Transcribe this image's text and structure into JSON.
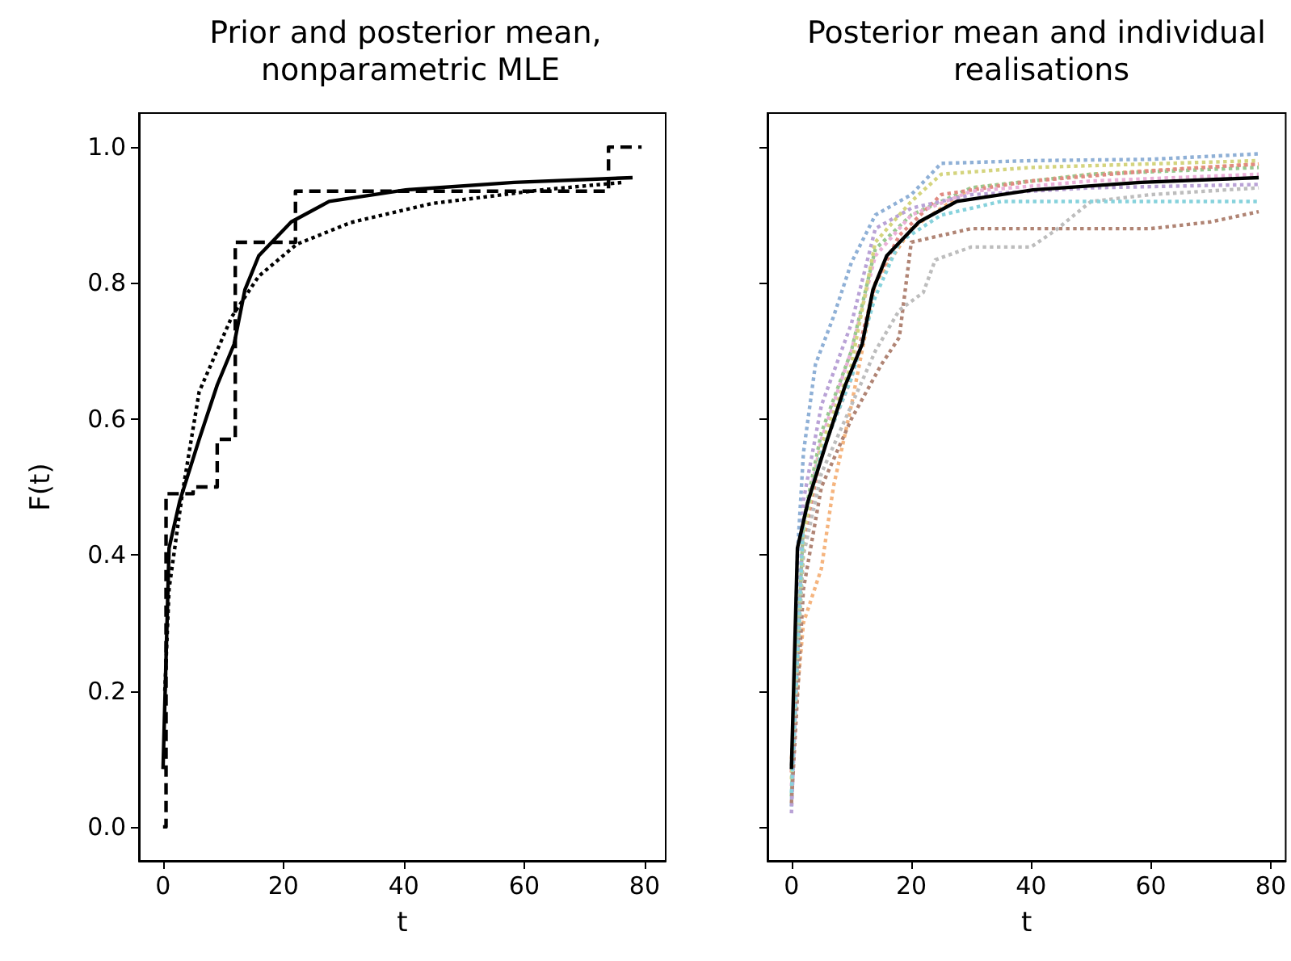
{
  "chart_data": [
    {
      "type": "line",
      "title": "Prior and posterior mean, nonparametric MLE",
      "xlabel": "t",
      "ylabel": "F(t)",
      "xlim": [
        -4,
        83.5
      ],
      "ylim": [
        -0.05,
        1.05
      ],
      "xticks": [
        0,
        20,
        40,
        60,
        80
      ],
      "yticks": [
        {
          "value": 0,
          "label": "0.0"
        },
        {
          "value": 0.2,
          "label": "0.2"
        },
        {
          "value": 0.4,
          "label": "0.4"
        },
        {
          "value": 0.6,
          "label": "0.6"
        },
        {
          "value": 0.8,
          "label": "0.8"
        },
        {
          "value": 1,
          "label": "1.0"
        }
      ],
      "grid": false,
      "marker": "none",
      "series": [
        {
          "color": "#000000",
          "line_style": "solid",
          "x": [
            0,
            1,
            2.8,
            6,
            9,
            11.8,
            13.6,
            15.9,
            21.3,
            27.6,
            40.3,
            58.3,
            78
          ],
          "values": [
            0.085,
            0.41,
            0.48,
            0.57,
            0.65,
            0.71,
            0.79,
            0.84,
            0.89,
            0.92,
            0.937,
            0.948,
            0.955
          ]
        },
        {
          "color": "#000000",
          "line_style": "dotted",
          "x": [
            0.3,
            1,
            3.2,
            6,
            11.4,
            15.9,
            22.2,
            31.2,
            44.7,
            62.9,
            76.4
          ],
          "values": [
            0.2,
            0.35,
            0.49,
            0.64,
            0.75,
            0.81,
            0.857,
            0.889,
            0.917,
            0.937,
            0.948
          ]
        },
        {
          "type": "step",
          "color": "#000000",
          "line_style": "dashed",
          "x": [
            0,
            0.5,
            5,
            9,
            12,
            22,
            74,
            79.5
          ],
          "values": [
            0,
            0.49,
            0.5,
            0.57,
            0.86,
            0.935,
            1.0,
            1.0
          ]
        }
      ]
    },
    {
      "type": "line",
      "title": "Posterior mean and individual realisations",
      "xlabel": "t",
      "xlim": [
        -4,
        82.5
      ],
      "ylim": [
        -0.05,
        1.05
      ],
      "xticks": [
        0,
        20,
        40,
        60,
        80
      ],
      "yticks": [
        0,
        0.2,
        0.4,
        0.6,
        0.8,
        1
      ],
      "tick_labels": "x",
      "grid": false,
      "marker": "none",
      "series": [
        {
          "color": "#8fb0d6",
          "line_style": "dotted",
          "x": [
            0,
            1,
            2,
            4,
            7,
            10,
            14,
            20,
            25,
            40,
            60,
            78
          ],
          "values": [
            0.03,
            0.4,
            0.55,
            0.68,
            0.75,
            0.83,
            0.9,
            0.93,
            0.976,
            0.98,
            0.982,
            0.99
          ]
        },
        {
          "color": "#f5b47e",
          "line_style": "dotted",
          "x": [
            0,
            2,
            5,
            7,
            10,
            14,
            20,
            30,
            50,
            78
          ],
          "values": [
            0.1,
            0.3,
            0.38,
            0.5,
            0.62,
            0.8,
            0.88,
            0.94,
            0.96,
            0.975
          ]
        },
        {
          "color": "#98c890",
          "line_style": "dotted",
          "x": [
            0,
            2,
            5,
            10,
            14,
            20,
            30,
            50,
            78
          ],
          "values": [
            0.045,
            0.45,
            0.58,
            0.7,
            0.85,
            0.9,
            0.94,
            0.96,
            0.97
          ]
        },
        {
          "color": "#e08a82",
          "line_style": "dotted",
          "x": [
            0,
            2,
            5,
            10,
            14,
            18,
            25,
            40,
            60,
            78
          ],
          "values": [
            0.08,
            0.42,
            0.55,
            0.66,
            0.8,
            0.87,
            0.93,
            0.95,
            0.965,
            0.975
          ]
        },
        {
          "color": "#b9a2d6",
          "line_style": "dotted",
          "x": [
            0,
            2,
            5,
            10,
            14,
            20,
            30,
            50,
            78
          ],
          "values": [
            0.02,
            0.48,
            0.62,
            0.74,
            0.88,
            0.91,
            0.93,
            0.94,
            0.945
          ]
        },
        {
          "color": "#b08474",
          "line_style": "dotted",
          "x": [
            0,
            2,
            5,
            10,
            15,
            18,
            20,
            30,
            60,
            70,
            78
          ],
          "values": [
            0.035,
            0.35,
            0.5,
            0.6,
            0.68,
            0.72,
            0.86,
            0.88,
            0.88,
            0.89,
            0.905
          ]
        },
        {
          "color": "#eab0d8",
          "line_style": "dotted",
          "x": [
            0,
            2,
            5,
            10,
            14,
            20,
            30,
            50,
            78
          ],
          "values": [
            0.06,
            0.44,
            0.57,
            0.7,
            0.84,
            0.9,
            0.935,
            0.95,
            0.96
          ]
        },
        {
          "color": "#bdbdbd",
          "line_style": "dotted",
          "x": [
            0,
            2,
            5,
            10,
            14,
            18,
            22,
            24,
            30,
            40,
            44,
            50,
            60,
            78
          ],
          "values": [
            0.09,
            0.4,
            0.52,
            0.62,
            0.7,
            0.76,
            0.786,
            0.834,
            0.853,
            0.853,
            0.877,
            0.92,
            0.93,
            0.94
          ]
        },
        {
          "color": "#d4d47e",
          "line_style": "dotted",
          "x": [
            0,
            2,
            5,
            10,
            14,
            20,
            25,
            40,
            78
          ],
          "values": [
            0.07,
            0.43,
            0.56,
            0.68,
            0.86,
            0.92,
            0.96,
            0.97,
            0.98
          ]
        },
        {
          "color": "#86d2dc",
          "line_style": "dotted",
          "x": [
            0,
            2,
            5,
            10,
            14,
            18,
            25,
            35,
            50,
            78
          ],
          "values": [
            0.05,
            0.45,
            0.55,
            0.66,
            0.78,
            0.86,
            0.9,
            0.92,
            0.92,
            0.92
          ]
        },
        {
          "color": "#000000",
          "line_style": "solid",
          "x": [
            0,
            1,
            2.8,
            6,
            9,
            11.8,
            13.6,
            15.9,
            21.3,
            27.6,
            40.3,
            58.3,
            78
          ],
          "values": [
            0.085,
            0.41,
            0.48,
            0.57,
            0.65,
            0.71,
            0.79,
            0.84,
            0.89,
            0.92,
            0.937,
            0.948,
            0.955
          ]
        }
      ]
    }
  ]
}
